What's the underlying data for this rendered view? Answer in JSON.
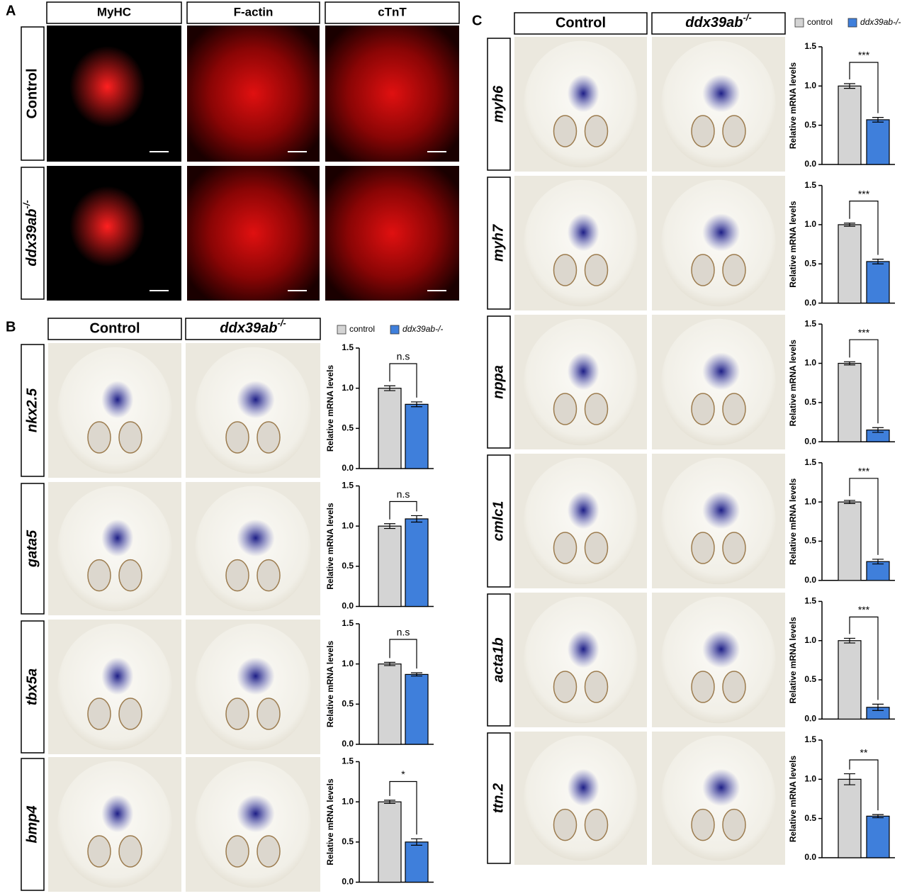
{
  "panels": [
    {
      "label": "A",
      "columns": [
        "MyHC",
        "F-actin",
        "cTnT"
      ],
      "rows": [
        "Control",
        {
          "base": "ddx39ab",
          "sup": "-/-"
        }
      ]
    },
    {
      "label": "B",
      "columns": [
        "Control",
        {
          "base": "ddx39ab",
          "sup": "-/-"
        }
      ],
      "rows": [
        "nkx2.5",
        "gata5",
        "tbx5a",
        "bmp4"
      ],
      "legend": [
        {
          "name": "control",
          "color": "#d4d4d4"
        },
        {
          "name": "ddx39ab-/-",
          "color": "#3f7fdb"
        }
      ]
    },
    {
      "label": "C",
      "columns": [
        "Control",
        {
          "base": "ddx39ab",
          "sup": "-/-"
        }
      ],
      "rows": [
        "myh6",
        "myh7",
        "nppa",
        "cmlc1",
        "acta1b",
        "ttn.2"
      ],
      "legend": [
        {
          "name": "control",
          "color": "#d4d4d4"
        },
        {
          "name": "ddx39ab-/-",
          "color": "#3f7fdb"
        }
      ]
    }
  ],
  "chart_data": [
    {
      "type": "bar",
      "ylabel": "Relative mRNA levels",
      "values": [
        1.0,
        0.8
      ],
      "errors": [
        0.03,
        0.03
      ],
      "annotation": "n.s",
      "ylim": [
        0,
        1.5
      ],
      "yticks": [
        {
          "value": 0,
          "label": "0.0"
        },
        {
          "value": 0.5,
          "label": "0.5"
        },
        {
          "value": 1,
          "label": "1.0"
        },
        {
          "value": 1.5,
          "label": "1.5"
        }
      ]
    },
    {
      "type": "bar",
      "ylabel": "Relative mRNA levels",
      "values": [
        1.0,
        1.09
      ],
      "errors": [
        0.03,
        0.04
      ],
      "annotation": "n.s",
      "ylim": [
        0,
        1.5
      ],
      "yticks": [
        {
          "value": 0,
          "label": "0.0"
        },
        {
          "value": 0.5,
          "label": "0.5"
        },
        {
          "value": 1,
          "label": "1.0"
        },
        {
          "value": 1.5,
          "label": "1.5"
        }
      ]
    },
    {
      "type": "bar",
      "ylabel": "Relative mRNA levels",
      "values": [
        1.0,
        0.87
      ],
      "errors": [
        0.02,
        0.02
      ],
      "annotation": "n.s",
      "ylim": [
        0,
        1.5
      ],
      "yticks": [
        {
          "value": 0,
          "label": "0.0"
        },
        {
          "value": 0.5,
          "label": "0.5"
        },
        {
          "value": 1,
          "label": "1.0"
        },
        {
          "value": 1.5,
          "label": "1.5"
        }
      ]
    },
    {
      "type": "bar",
      "ylabel": "Relative mRNA levels",
      "values": [
        1.0,
        0.5
      ],
      "errors": [
        0.02,
        0.04
      ],
      "annotation": "*",
      "ylim": [
        0,
        1.5
      ],
      "yticks": [
        {
          "value": 0,
          "label": "0.0"
        },
        {
          "value": 0.5,
          "label": "0.5"
        },
        {
          "value": 1,
          "label": "1.0"
        },
        {
          "value": 1.5,
          "label": "1.5"
        }
      ]
    },
    {
      "type": "bar",
      "ylabel": "Relative mRNA levels",
      "values": [
        1.0,
        0.57
      ],
      "errors": [
        0.03,
        0.03
      ],
      "annotation": "***",
      "ylim": [
        0,
        1.5
      ],
      "yticks": [
        {
          "value": 0,
          "label": "0.0"
        },
        {
          "value": 0.5,
          "label": "0.5"
        },
        {
          "value": 1,
          "label": "1.0"
        },
        {
          "value": 1.5,
          "label": "1.5"
        }
      ]
    },
    {
      "type": "bar",
      "ylabel": "Relative mRNA levels",
      "values": [
        1.0,
        0.53
      ],
      "errors": [
        0.02,
        0.03
      ],
      "annotation": "***",
      "ylim": [
        0,
        1.5
      ],
      "yticks": [
        {
          "value": 0,
          "label": "0.0"
        },
        {
          "value": 0.5,
          "label": "0.5"
        },
        {
          "value": 1,
          "label": "1.0"
        },
        {
          "value": 1.5,
          "label": "1.5"
        }
      ]
    },
    {
      "type": "bar",
      "ylabel": "Relative mRNA levels",
      "values": [
        1.0,
        0.15
      ],
      "errors": [
        0.02,
        0.03
      ],
      "annotation": "***",
      "ylim": [
        0,
        1.5
      ],
      "yticks": [
        {
          "value": 0,
          "label": "0.0"
        },
        {
          "value": 0.5,
          "label": "0.5"
        },
        {
          "value": 1,
          "label": "1.0"
        },
        {
          "value": 1.5,
          "label": "1.5"
        }
      ]
    },
    {
      "type": "bar",
      "ylabel": "Relative mRNA levels",
      "values": [
        1.0,
        0.24
      ],
      "errors": [
        0.02,
        0.03
      ],
      "annotation": "***",
      "ylim": [
        0,
        1.5
      ],
      "yticks": [
        {
          "value": 0,
          "label": "0.0"
        },
        {
          "value": 0.5,
          "label": "0.5"
        },
        {
          "value": 1,
          "label": "1.0"
        },
        {
          "value": 1.5,
          "label": "1.5"
        }
      ]
    },
    {
      "type": "bar",
      "ylabel": "Relative mRNA levels",
      "values": [
        1.0,
        0.15
      ],
      "errors": [
        0.03,
        0.04
      ],
      "annotation": "***",
      "ylim": [
        0,
        1.5
      ],
      "yticks": [
        {
          "value": 0,
          "label": "0.0"
        },
        {
          "value": 0.5,
          "label": "0.5"
        },
        {
          "value": 1,
          "label": "1.0"
        },
        {
          "value": 1.5,
          "label": "1.5"
        }
      ]
    },
    {
      "type": "bar",
      "ylabel": "Relative mRNA levels",
      "values": [
        1.0,
        0.53
      ],
      "errors": [
        0.07,
        0.02
      ],
      "annotation": "**",
      "ylim": [
        0,
        1.5
      ],
      "yticks": [
        {
          "value": 0,
          "label": "0.0"
        },
        {
          "value": 0.5,
          "label": "0.5"
        },
        {
          "value": 1,
          "label": "1.0"
        },
        {
          "value": 1.5,
          "label": "1.5"
        }
      ]
    }
  ]
}
